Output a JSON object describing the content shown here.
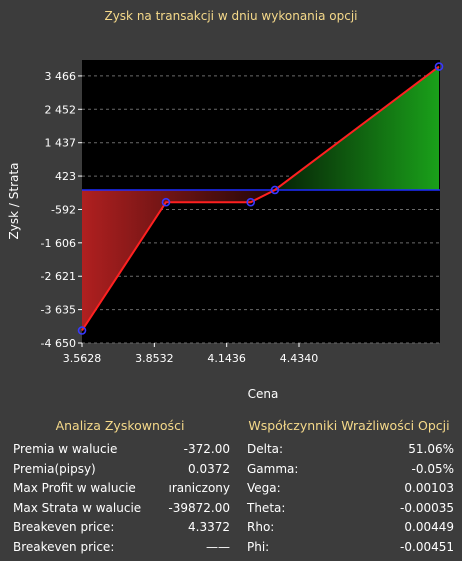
{
  "chart_data": {
    "type": "line",
    "title": "Zysk na transakcji w dniu wykonania opcji",
    "xlabel": "Cena",
    "ylabel": "Zysk / Strata",
    "xlim": [
      3.5628,
      5.0
    ],
    "ylim": [
      -4650,
      3950
    ],
    "x_ticks": [
      3.5628,
      3.8532,
      4.1436,
      4.434
    ],
    "x_tick_labels": [
      "3.5628",
      "3.8532",
      "4.1436",
      "4.4340"
    ],
    "y_ticks": [
      3466,
      2452,
      1437,
      423,
      -592,
      -1606,
      -2621,
      -3635,
      -4650
    ],
    "y_tick_labels": [
      "3 466",
      "2 452",
      "1 437",
      "423",
      "-592",
      "-1 606",
      "-2 621",
      "-3 635",
      "-4 650"
    ],
    "zero_line": 0,
    "grid": true,
    "series": [
      {
        "values_x": [
          3.5628,
          3.9,
          4.24,
          4.3372,
          4.996
        ],
        "values_y": [
          -4270,
          -372,
          -372,
          0,
          3750
        ]
      }
    ],
    "colors": {
      "line": "#ff2020",
      "marker": "#3838ff",
      "zero_line": "#1e2cff",
      "profit_fill": "#1aa01a",
      "loss_fill": "#b02020",
      "plot_bg": "#000000"
    }
  },
  "analysis": {
    "title": "Analiza Zyskowności",
    "rows": [
      {
        "label": "Premia w walucie",
        "value": "-372.00"
      },
      {
        "label": "Premia(pipsy)",
        "value": "0.0372"
      },
      {
        "label": "Max Profit w walucie",
        "value": "ıraniczony"
      },
      {
        "label": "Max Strata w walucie",
        "value": "-39872.00"
      },
      {
        "label": "Breakeven price:",
        "value": "4.3372"
      },
      {
        "label": "Breakeven price:",
        "value": "——"
      }
    ]
  },
  "greeks": {
    "title": "Współczynniki Wrażliwości Opcji",
    "rows": [
      {
        "label": "Delta:",
        "value": "51.06%"
      },
      {
        "label": "Gamma:",
        "value": "-0.05%"
      },
      {
        "label": "Vega:",
        "value": "0.00103"
      },
      {
        "label": "Theta:",
        "value": "-0.00035"
      },
      {
        "label": "Rho:",
        "value": "0.00449"
      },
      {
        "label": "Phi:",
        "value": "-0.00451"
      }
    ]
  }
}
